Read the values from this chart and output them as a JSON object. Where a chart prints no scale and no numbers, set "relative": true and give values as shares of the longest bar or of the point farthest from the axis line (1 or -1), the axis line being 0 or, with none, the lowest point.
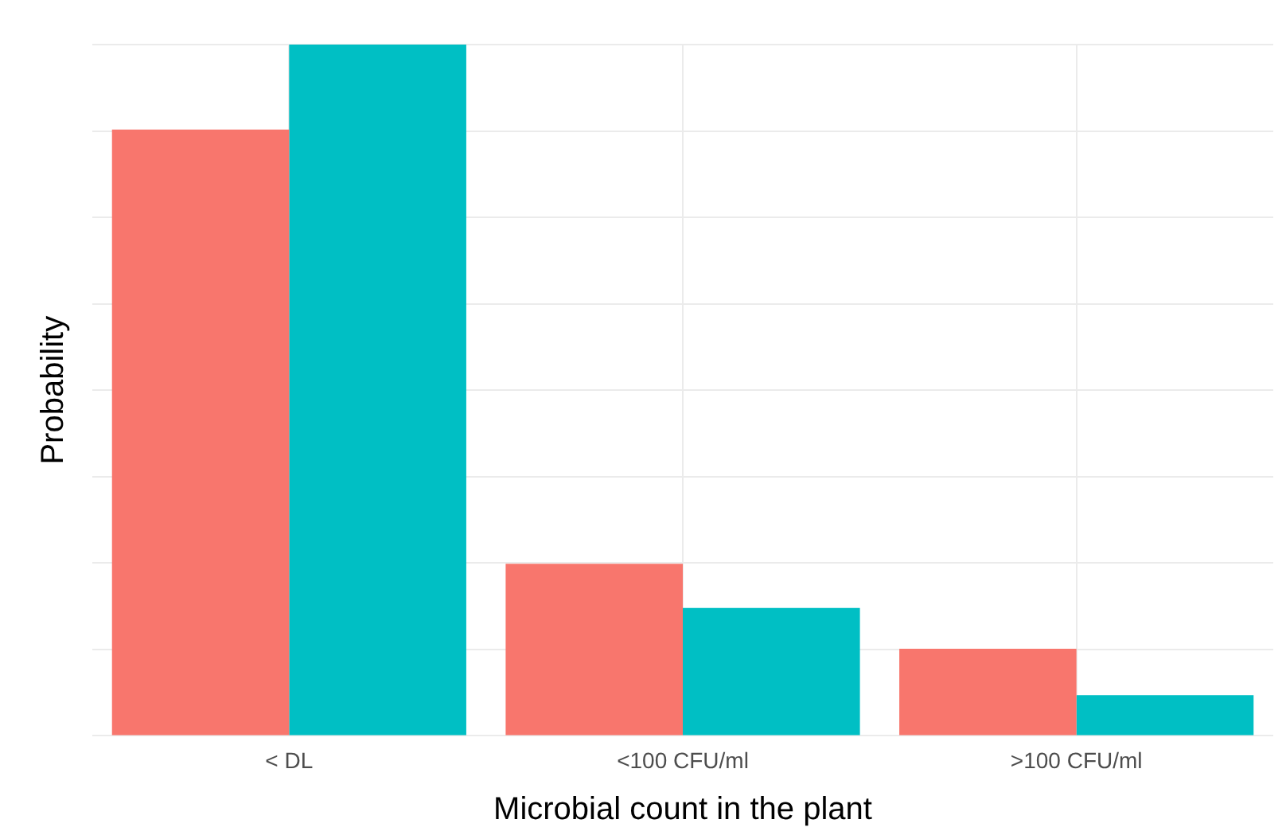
{
  "chart_data": {
    "type": "bar",
    "xlabel": "Microbial count in the plant",
    "ylabel": "Probability",
    "categories": [
      "< DL",
      "<100 CFU/ml",
      ">100 CFU/ml"
    ],
    "series": [
      {
        "color": "#f8766d",
        "values": [
          0.877,
          0.249,
          0.126
        ]
      },
      {
        "color": "#00bfc4",
        "values": [
          1,
          0.185,
          0.059
        ]
      }
    ],
    "relative": true,
    "grid": true
  }
}
